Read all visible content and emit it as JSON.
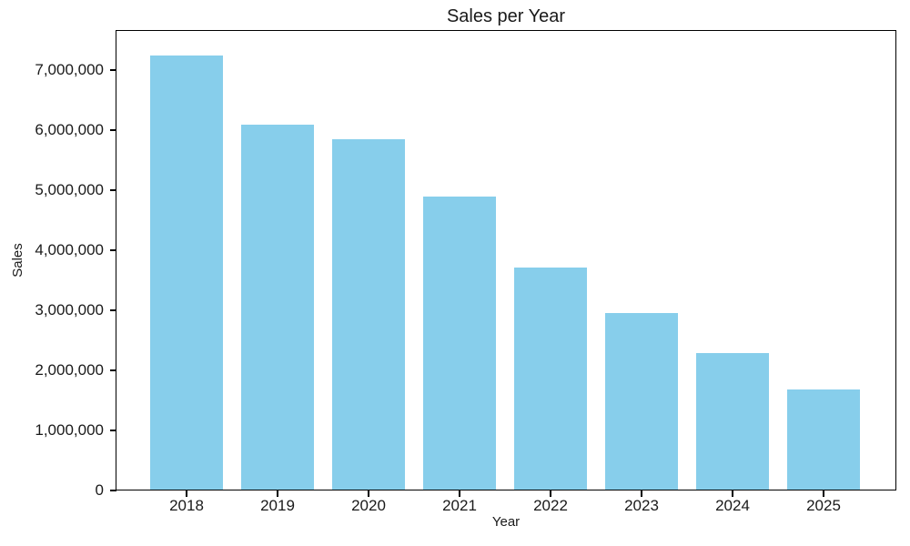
{
  "chart_data": {
    "type": "bar",
    "title": "Sales per Year",
    "xlabel": "Year",
    "ylabel": "Sales",
    "categories": [
      "2018",
      "2019",
      "2020",
      "2021",
      "2022",
      "2023",
      "2024",
      "2025"
    ],
    "values": [
      7250000,
      6090000,
      5850000,
      4890000,
      3710000,
      2950000,
      2290000,
      1680000
    ],
    "series_name": "Sales",
    "bar_color": "#87CEEB",
    "axis_color": "#000000",
    "text_color": "#1a1a1a",
    "background_color": "#ffffff",
    "ylim": [
      0,
      7670000
    ],
    "yticks": [
      {
        "value": 0,
        "label": "0"
      },
      {
        "value": 1000000,
        "label": "1,000,000"
      },
      {
        "value": 2000000,
        "label": "2,000,000"
      },
      {
        "value": 3000000,
        "label": "3,000,000"
      },
      {
        "value": 4000000,
        "label": "4,000,000"
      },
      {
        "value": 5000000,
        "label": "5,000,000"
      },
      {
        "value": 6000000,
        "label": "6,000,000"
      },
      {
        "value": 7000000,
        "label": "7,000,000"
      }
    ],
    "grid": false,
    "legend_position": "none"
  }
}
